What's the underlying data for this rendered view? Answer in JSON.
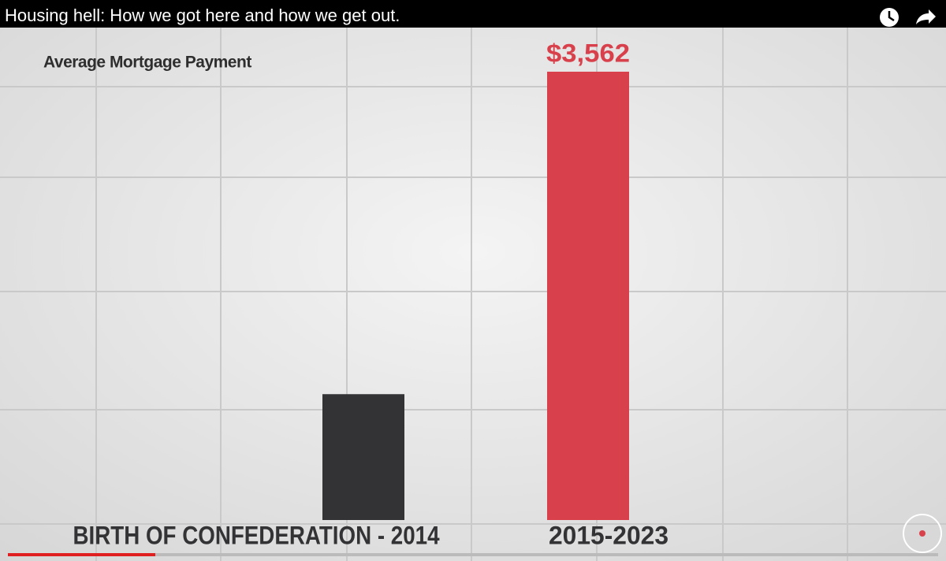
{
  "video": {
    "title": "Housing hell: How we got here and how we get out."
  },
  "chart_data": {
    "type": "bar",
    "title": "Average Mortgage Payment",
    "categories": [
      "BIRTH OF CONFEDERATION - 2014",
      "2015-2023"
    ],
    "values": [
      1000,
      3562
    ],
    "value_labels": [
      null,
      "$3,562"
    ],
    "colors": [
      "#333336",
      "#d8414b"
    ]
  }
}
